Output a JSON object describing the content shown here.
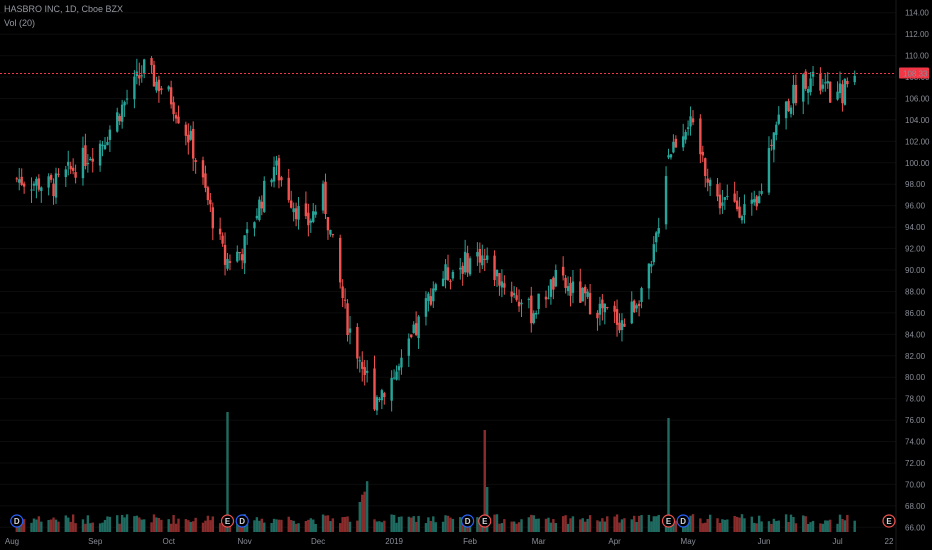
{
  "header": {
    "title": "HASBRO INC, 1D, Cboe BZX",
    "volume_label": "Vol (20)"
  },
  "price_line": {
    "label": "108.33",
    "color": "#f23645"
  },
  "colors": {
    "up": "#26a69a",
    "down": "#ef5350",
    "vol_up": "#1f6b62",
    "vol_down": "#8a2c2c",
    "grid": "#0c0c0c"
  },
  "chart_data": {
    "type": "candlestick",
    "title": "HASBRO INC, 1D, Cboe BZX",
    "y_ticks": [
      "114.00",
      "112.00",
      "110.00",
      "108.00",
      "106.00",
      "104.00",
      "102.00",
      "100.00",
      "98.00",
      "96.00",
      "94.00",
      "92.00",
      "90.00",
      "88.00",
      "86.00",
      "84.00",
      "82.00",
      "80.00",
      "78.00",
      "76.00",
      "74.00",
      "72.00",
      "70.00",
      "68.00",
      "66.00"
    ],
    "ylim": [
      65,
      115
    ],
    "x_labels": [
      "Aug",
      "Sep",
      "Oct",
      "Nov",
      "Dec",
      "2019",
      "Feb",
      "Mar",
      "Apr",
      "May",
      "Jun",
      "Jul",
      "22"
    ],
    "current_price": 108.33,
    "approx_close_path": [
      {
        "date": "2018-07-31",
        "close": 98.5
      },
      {
        "date": "2018-08-15",
        "close": 97.8
      },
      {
        "date": "2018-09-04",
        "close": 102.0
      },
      {
        "date": "2018-09-21",
        "close": 108.8
      },
      {
        "date": "2018-10-02",
        "close": 106.0
      },
      {
        "date": "2018-10-10",
        "close": 102.0
      },
      {
        "date": "2018-10-24",
        "close": 90.8
      },
      {
        "date": "2018-10-31",
        "close": 91.8
      },
      {
        "date": "2018-11-13",
        "close": 99.8
      },
      {
        "date": "2018-11-26",
        "close": 94.0
      },
      {
        "date": "2018-12-03",
        "close": 97.0
      },
      {
        "date": "2018-12-13",
        "close": 85.0
      },
      {
        "date": "2018-12-24",
        "close": 78.0
      },
      {
        "date": "2019-01-04",
        "close": 81.0
      },
      {
        "date": "2019-01-18",
        "close": 89.0
      },
      {
        "date": "2019-02-05",
        "close": 91.5
      },
      {
        "date": "2019-02-12",
        "close": 89.5
      },
      {
        "date": "2019-02-26",
        "close": 86.0
      },
      {
        "date": "2019-03-08",
        "close": 89.0
      },
      {
        "date": "2019-03-25",
        "close": 86.5
      },
      {
        "date": "2019-04-05",
        "close": 85.0
      },
      {
        "date": "2019-04-16",
        "close": 90.0
      },
      {
        "date": "2019-04-23",
        "close": 101.0
      },
      {
        "date": "2019-05-01",
        "close": 104.0
      },
      {
        "date": "2019-05-13",
        "close": 96.5
      },
      {
        "date": "2019-05-29",
        "close": 95.5
      },
      {
        "date": "2019-06-05",
        "close": 103.5
      },
      {
        "date": "2019-06-18",
        "close": 108.0
      },
      {
        "date": "2019-07-01",
        "close": 106.0
      },
      {
        "date": "2019-07-08",
        "close": 108.3
      }
    ],
    "event_markers": [
      {
        "letter": "D",
        "date": "2018-07-31"
      },
      {
        "letter": "E",
        "date": "2018-10-25"
      },
      {
        "letter": "D",
        "date": "2018-10-31"
      },
      {
        "letter": "D",
        "date": "2019-01-31"
      },
      {
        "letter": "E",
        "date": "2019-02-07"
      },
      {
        "letter": "E",
        "date": "2019-04-23"
      },
      {
        "letter": "D",
        "date": "2019-04-29"
      },
      {
        "letter": "E",
        "date": "2019-07-22"
      }
    ],
    "volume_spikes": [
      {
        "date": "2018-10-25",
        "relative": 1.0
      },
      {
        "date": "2019-02-07",
        "relative": 0.85
      },
      {
        "date": "2019-04-23",
        "relative": 0.95
      }
    ]
  }
}
